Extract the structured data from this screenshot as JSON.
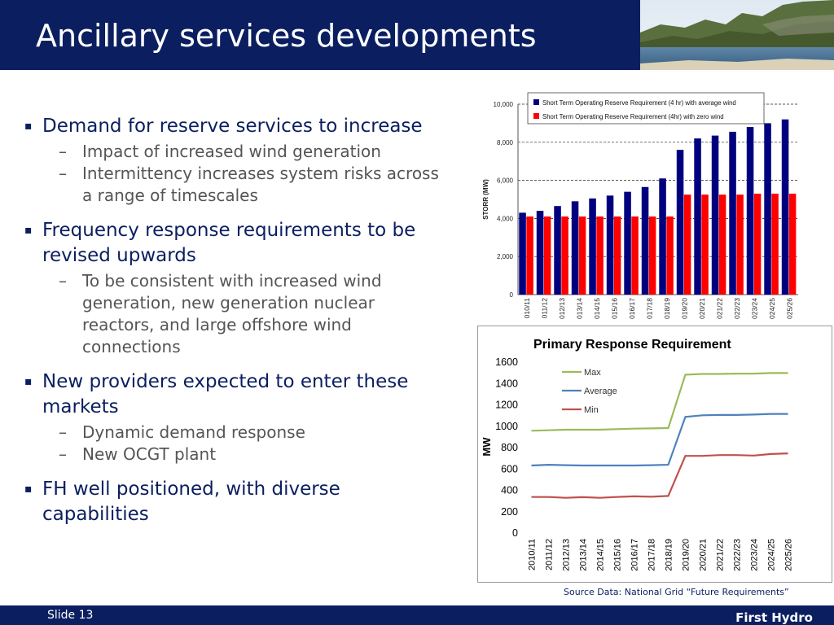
{
  "header": {
    "title": "Ancillary services developments"
  },
  "bullets": [
    {
      "text": "Demand for reserve services to increase",
      "sub": [
        "Impact of increased wind generation",
        "Intermittency increases system risks across a range of timescales"
      ]
    },
    {
      "text": "Frequency response requirements to be revised upwards",
      "sub": [
        "To be consistent with increased wind generation, new generation nuclear reactors, and large offshore wind connections"
      ]
    },
    {
      "text": "New providers expected to enter these markets",
      "sub": [
        "Dynamic demand response",
        "New OCGT plant"
      ]
    },
    {
      "text": "FH well positioned, with diverse capabilities",
      "sub": []
    }
  ],
  "chart_data": [
    {
      "type": "bar",
      "ylabel": "STORR (MW)",
      "ylim": [
        0,
        10000
      ],
      "yticks": [
        "0",
        "2,000",
        "4,000",
        "6,000",
        "8,000",
        "10,000"
      ],
      "yticks_values": [
        0,
        2000,
        4000,
        6000,
        8000,
        10000
      ],
      "categories": [
        "2010/11",
        "2011/12",
        "2012/13",
        "2013/14",
        "2014/15",
        "2015/16",
        "2016/17",
        "2017/18",
        "2018/19",
        "2019/20",
        "2020/21",
        "2021/22",
        "2022/23",
        "2023/24",
        "2024/25",
        "2025/26"
      ],
      "category_labels": [
        "010/11",
        "011/12",
        "012/13",
        "013/14",
        "014/15",
        "015/16",
        "016/17",
        "017/18",
        "018/19",
        "019/20",
        "020/21",
        "021/22",
        "022/23",
        "023/24",
        "024/25",
        "025/26"
      ],
      "series": [
        {
          "name": "Short Term Operating Reserve Requirement (4 hr) with average wind",
          "color": "#00007f",
          "values": [
            4300,
            4400,
            4650,
            4900,
            5050,
            5200,
            5400,
            5650,
            6100,
            7600,
            8200,
            8350,
            8550,
            8800,
            9000,
            9200
          ]
        },
        {
          "name": "Short Term Operating Reserve Requirement (4hr) with zero wind",
          "color": "#ff0000",
          "values": [
            4100,
            4100,
            4100,
            4100,
            4100,
            4100,
            4100,
            4100,
            4100,
            5250,
            5250,
            5250,
            5250,
            5300,
            5300,
            5300
          ]
        }
      ],
      "grid": true,
      "legend": "top"
    },
    {
      "type": "line",
      "title": "Primary Response Requirement",
      "ylabel": "MW",
      "ylim": [
        0,
        1600
      ],
      "yticks": [
        "0",
        "200",
        "400",
        "600",
        "800",
        "1000",
        "1200",
        "1400",
        "1600"
      ],
      "yticks_values": [
        0,
        200,
        400,
        600,
        800,
        1000,
        1200,
        1400,
        1600
      ],
      "categories": [
        "2010/11",
        "2011/12",
        "2012/13",
        "2013/14",
        "2014/15",
        "2015/16",
        "2016/17",
        "2017/18",
        "2018/19",
        "2019/20",
        "2020/21",
        "2021/22",
        "2022/23",
        "2023/24",
        "2024/25",
        "2025/26"
      ],
      "series": [
        {
          "name": "Max",
          "color": "#9bbb59",
          "values": [
            950,
            955,
            960,
            960,
            960,
            965,
            970,
            972,
            975,
            1475,
            1482,
            1482,
            1485,
            1485,
            1490,
            1490
          ]
        },
        {
          "name": "Average",
          "color": "#4f81bd",
          "values": [
            625,
            632,
            628,
            625,
            625,
            625,
            625,
            628,
            632,
            1080,
            1095,
            1098,
            1098,
            1102,
            1108,
            1108
          ]
        },
        {
          "name": "Min",
          "color": "#c0504d",
          "values": [
            330,
            330,
            322,
            328,
            322,
            330,
            336,
            332,
            340,
            715,
            715,
            722,
            722,
            718,
            732,
            738
          ]
        }
      ],
      "grid": false,
      "legend": "top-left"
    }
  ],
  "source": "Source Data: National Grid “Future Requirements”",
  "footer": {
    "slide": "Slide 13",
    "brand": "First Hydro"
  },
  "colors": {
    "navy": "#0b1f60"
  }
}
